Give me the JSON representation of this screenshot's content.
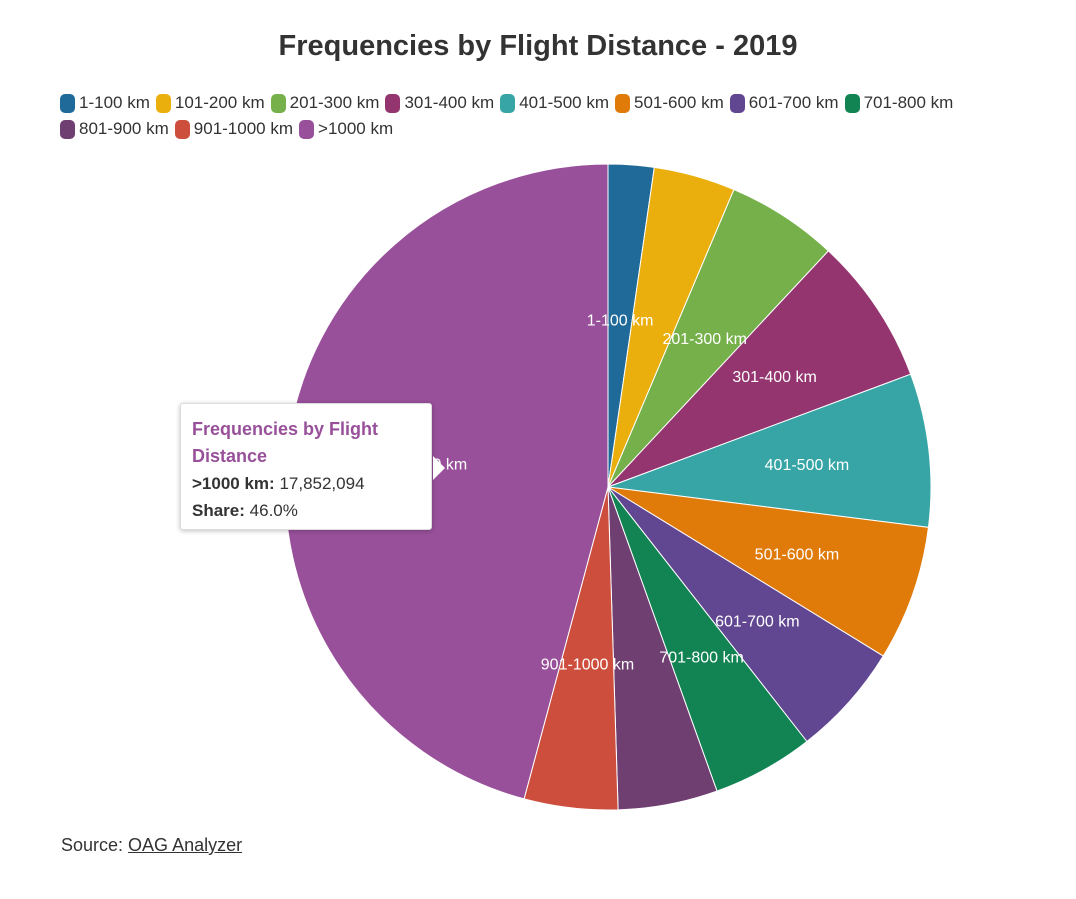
{
  "chart_data": {
    "type": "pie",
    "title": "Frequencies by Flight Distance - 2019",
    "categories": [
      "1-100 km",
      "101-200 km",
      "201-300 km",
      "301-400 km",
      "401-500 km",
      "501-600 km",
      "601-700 km",
      "701-800 km",
      "801-900 km",
      "901-1000 km",
      ">1000 km"
    ],
    "values": [
      2.3,
      4.1,
      5.6,
      7.4,
      7.7,
      6.8,
      5.7,
      5.1,
      5.0,
      4.7,
      46.0
    ],
    "value_unit": "percent share (estimated from slice angles; only >1000 km share shown)",
    "colors": [
      "#1f6a98",
      "#ebaf0d",
      "#76b04b",
      "#943570",
      "#37a5a5",
      "#e07a08",
      "#614792",
      "#128453",
      "#6e3f70",
      "#ce4e3d",
      "#98509a"
    ],
    "slice_labels_shown": [
      "1-100 km",
      "201-300 km",
      "301-400 km",
      "401-500 km",
      "501-600 km",
      "601-700 km",
      "701-800 km",
      "901-1000 km",
      ">1000 km"
    ],
    "legend": {
      "placement": "top-left"
    }
  },
  "legend_rows": [
    [
      "1-100 km",
      "101-200 km",
      "201-300 km",
      "301-400 km",
      "401-500 km",
      "501-600 km",
      "601-700 km",
      "701-800 km"
    ],
    [
      "801-900 km",
      "901-1000 km",
      ">1000 km"
    ]
  ],
  "tooltip": {
    "title": "Frequencies by Flight Distance",
    "category_label": ">1000 km:",
    "category_value": "17,852,094",
    "share_label": "Share:",
    "share_value": "46.0%"
  },
  "source": {
    "prefix": "Source: ",
    "link_text": "OAG Analyzer"
  }
}
